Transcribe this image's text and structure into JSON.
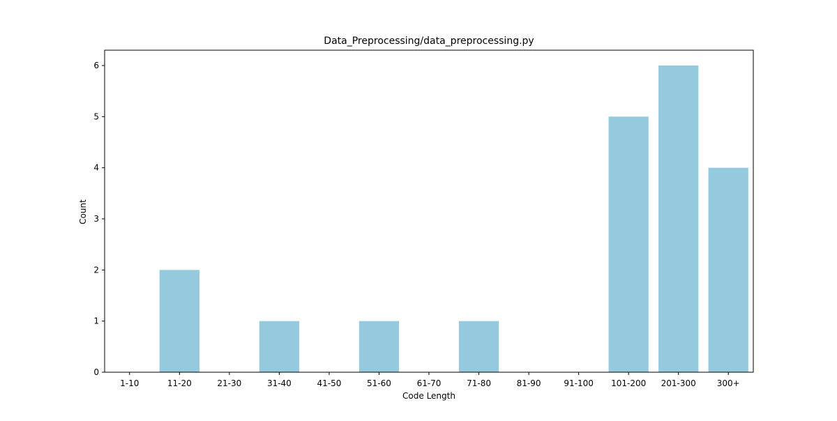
{
  "chart_data": {
    "type": "bar",
    "title": "Data_Preprocessing/data_preprocessing.py",
    "xlabel": "Code Length",
    "ylabel": "Count",
    "categories": [
      "1-10",
      "11-20",
      "21-30",
      "31-40",
      "41-50",
      "51-60",
      "61-70",
      "71-80",
      "81-90",
      "91-100",
      "101-200",
      "201-300",
      "300+"
    ],
    "values": [
      0,
      2,
      0,
      1,
      0,
      1,
      0,
      1,
      0,
      0,
      5,
      6,
      4
    ],
    "ylim": [
      0,
      6.3
    ],
    "yticks": [
      0,
      1,
      2,
      3,
      4,
      5,
      6
    ],
    "grid": false,
    "bar_color": "#95c9de"
  }
}
